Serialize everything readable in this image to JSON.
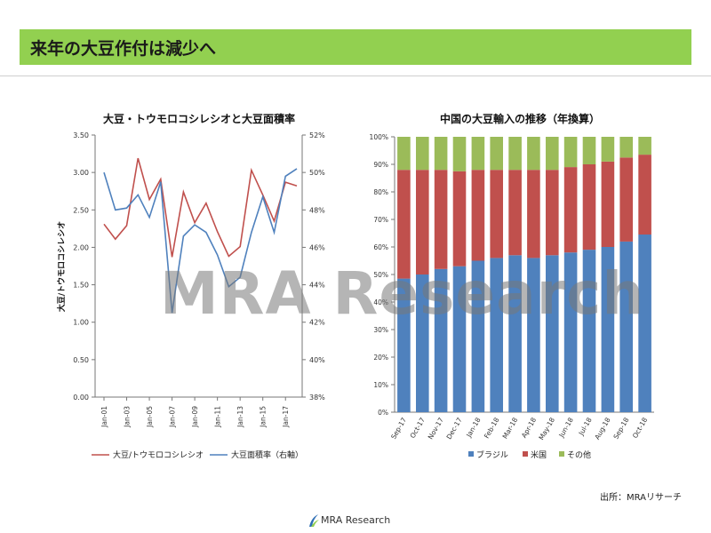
{
  "header": {
    "title": "来年の大豆作付は減少へ"
  },
  "footer": {
    "source": "出所：MRAリサーチ",
    "logo_text": "MRA Research"
  },
  "watermark": "MRA Research",
  "colors": {
    "banner": "#92d050",
    "ratio_line": "#c0504d",
    "area_line": "#4f81bd",
    "brazil": "#4f81bd",
    "usa": "#c0504d",
    "other": "#9bbb59"
  },
  "chart_data": [
    {
      "type": "line",
      "title": "大豆・トウモロコシレシオと大豆面積率",
      "ylabel": "大豆/トウモロコシレシオ",
      "ylim": [
        0,
        3.5
      ],
      "y2lim": [
        38,
        52
      ],
      "yticks": [
        "0.00",
        "0.50",
        "1.00",
        "1.50",
        "2.00",
        "2.50",
        "3.00",
        "3.50"
      ],
      "y2ticks": [
        "38%",
        "40%",
        "42%",
        "44%",
        "46%",
        "48%",
        "50%",
        "52%"
      ],
      "xticks": [
        "Jan-01",
        "Jan-03",
        "Jan-05",
        "Jan-07",
        "Jan-09",
        "Jan-11",
        "Jan-13",
        "Jan-15",
        "Jan-17"
      ],
      "x": [
        "2001",
        "2002",
        "2003",
        "2004",
        "2005",
        "2006",
        "2007",
        "2008",
        "2009",
        "2010",
        "2011",
        "2012",
        "2013",
        "2014",
        "2015",
        "2016",
        "2017",
        "2018"
      ],
      "series": [
        {
          "name": "大豆/トウモロコシレシオ",
          "axis": "left",
          "values": [
            2.31,
            2.11,
            2.29,
            3.19,
            2.64,
            2.91,
            1.87,
            2.74,
            2.33,
            2.59,
            2.21,
            1.88,
            2.01,
            3.03,
            2.7,
            2.35,
            2.87,
            2.82
          ]
        },
        {
          "name": "大豆面積率（右軸）",
          "axis": "right",
          "values": [
            50.0,
            48.0,
            48.1,
            48.8,
            47.6,
            49.5,
            42.5,
            46.6,
            47.2,
            46.8,
            45.6,
            43.9,
            44.4,
            46.8,
            48.7,
            46.8,
            49.8,
            50.2
          ]
        }
      ],
      "legend": "bottom"
    },
    {
      "type": "bar",
      "stacked": true,
      "title": "中国の大豆輸入の推移（年換算）",
      "ylim": [
        0,
        100
      ],
      "yticks": [
        "0%",
        "10%",
        "20%",
        "30%",
        "40%",
        "50%",
        "60%",
        "70%",
        "80%",
        "90%",
        "100%"
      ],
      "categories": [
        "Sep-17",
        "Oct-17",
        "Nov-17",
        "Dec-17",
        "Jan-18",
        "Feb-18",
        "Mar-18",
        "Apr-18",
        "May-18",
        "Jun-18",
        "Jul-18",
        "Aug-18",
        "Sep-18",
        "Oct-18"
      ],
      "series": [
        {
          "name": "ブラジル",
          "values": [
            48.5,
            50.0,
            52.0,
            53.0,
            55.0,
            56.0,
            57.0,
            56.0,
            57.0,
            58.0,
            59.0,
            60.0,
            62.0,
            64.5
          ]
        },
        {
          "name": "米国",
          "values": [
            39.5,
            38.0,
            36.0,
            34.5,
            33.0,
            32.0,
            31.0,
            32.0,
            31.0,
            31.0,
            31.0,
            31.0,
            30.5,
            29.0
          ]
        },
        {
          "name": "その他",
          "values": [
            12.0,
            12.0,
            12.0,
            12.5,
            12.0,
            12.0,
            12.0,
            12.0,
            12.0,
            11.0,
            10.0,
            9.0,
            7.5,
            6.5
          ]
        }
      ],
      "legend": "bottom"
    }
  ]
}
